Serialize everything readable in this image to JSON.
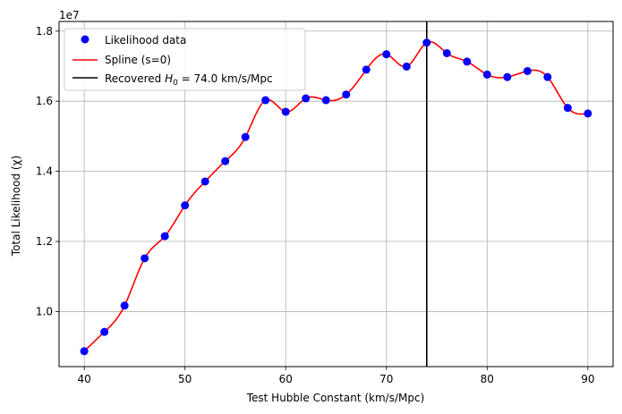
{
  "chart_data": {
    "type": "scatter",
    "xlabel": "Test Hubble Constant (km/s/Mpc)",
    "ylabel": "Total Likelihood (χ)",
    "y_offset_label": "1e7",
    "xlim": [
      37.5,
      92.5
    ],
    "ylim": [
      8430000.0,
      18275000.0
    ],
    "x_ticks": [
      40,
      50,
      60,
      70,
      80,
      90
    ],
    "x_tick_labels": [
      "40",
      "50",
      "60",
      "70",
      "80",
      "90"
    ],
    "y_ticks": [
      10000000.0,
      12000000.0,
      14000000.0,
      16000000.0,
      18000000.0
    ],
    "y_tick_labels": [
      "1.0",
      "1.2",
      "1.4",
      "1.6",
      "1.8"
    ],
    "grid": true,
    "legend_position": "top-left",
    "series": [
      {
        "name": "Likelihood data",
        "kind": "scatter",
        "color": "#0000ff",
        "x": [
          40,
          42,
          44,
          46,
          48,
          50,
          52,
          54,
          56,
          58,
          60,
          62,
          64,
          66,
          68,
          70,
          72,
          74,
          76,
          78,
          80,
          82,
          84,
          86,
          88,
          90
        ],
        "y": [
          8870000,
          9420000,
          10170000,
          11520000,
          12150000,
          13030000,
          13710000,
          14290000,
          14980000,
          16030000,
          15700000,
          16080000,
          16030000,
          16190000,
          16900000,
          17340000,
          16990000,
          17670000,
          17370000,
          17130000,
          16760000,
          16690000,
          16860000,
          16690000,
          15810000,
          15650000
        ]
      },
      {
        "name": "Spline (s=0)",
        "kind": "line",
        "color": "#ff0000"
      },
      {
        "name_prefix": "Recovered ",
        "name_symbol": "H",
        "name_sub": "0",
        "name_suffix": " = 74.0 km/s/Mpc",
        "kind": "vline",
        "color": "#000000",
        "x": 74.0
      }
    ]
  }
}
